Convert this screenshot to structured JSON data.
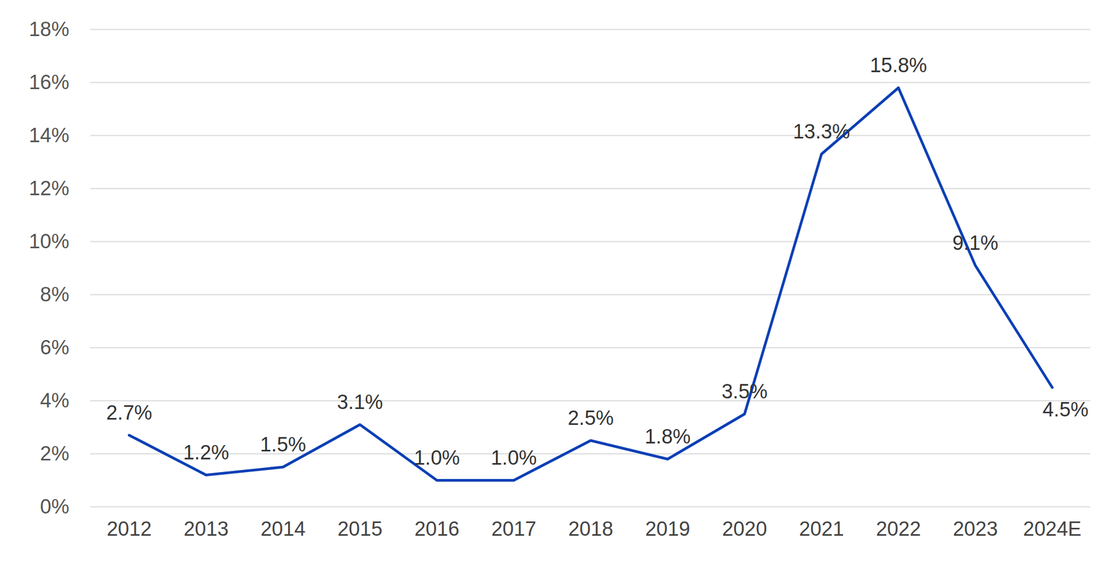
{
  "chart_data": {
    "type": "line",
    "categories": [
      "2012",
      "2013",
      "2014",
      "2015",
      "2016",
      "2017",
      "2018",
      "2019",
      "2020",
      "2021",
      "2022",
      "2023",
      "2024E"
    ],
    "values": [
      2.7,
      1.2,
      1.5,
      3.1,
      1.0,
      1.0,
      2.5,
      1.8,
      3.5,
      13.3,
      15.8,
      9.1,
      4.5
    ],
    "value_labels": [
      "2.7%",
      "1.2%",
      "1.5%",
      "3.1%",
      "1.0%",
      "1.0%",
      "2.5%",
      "1.8%",
      "3.5%",
      "13.3%",
      "15.8%",
      "9.1%",
      "4.5%"
    ],
    "color": "#0b3fb5",
    "ylim": [
      0,
      18
    ],
    "yticks": [
      {
        "value": 0,
        "label": "0%"
      },
      {
        "value": 2,
        "label": "2%"
      },
      {
        "value": 4,
        "label": "4%"
      },
      {
        "value": 6,
        "label": "6%"
      },
      {
        "value": 8,
        "label": "8%"
      },
      {
        "value": 10,
        "label": "10%"
      },
      {
        "value": 12,
        "label": "12%"
      },
      {
        "value": 14,
        "label": "14%"
      },
      {
        "value": 16,
        "label": "16%"
      },
      {
        "value": 18,
        "label": "18%"
      }
    ],
    "grid": true,
    "data_labels": true
  }
}
